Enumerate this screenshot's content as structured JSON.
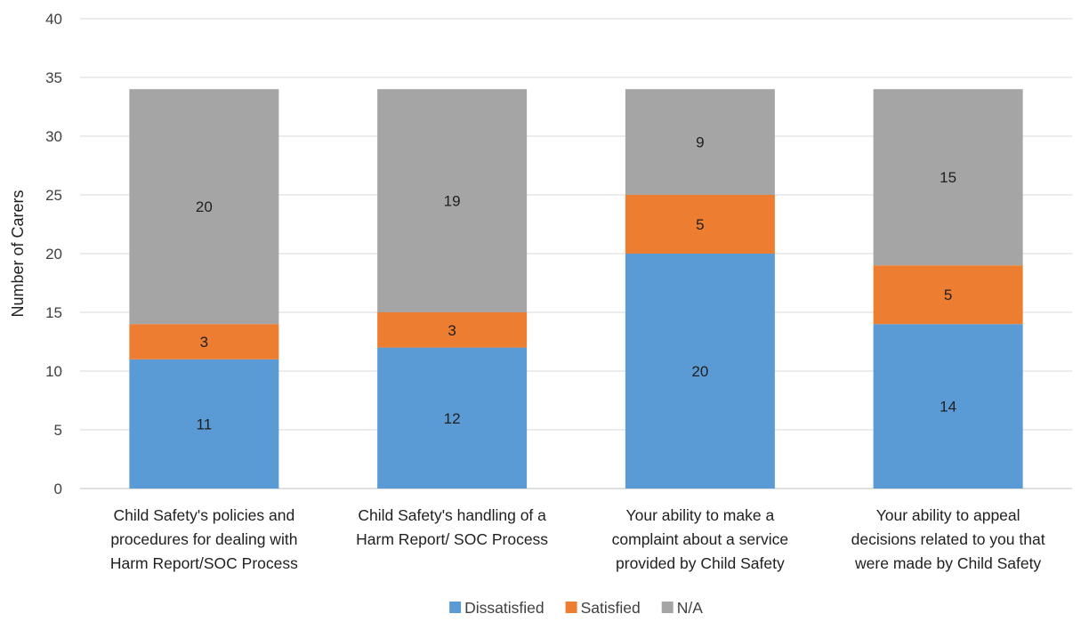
{
  "chart_data": {
    "type": "bar",
    "stacked": true,
    "title": "",
    "xlabel": "",
    "ylabel": "Number of Carers",
    "ylim": [
      0,
      40
    ],
    "yticks": [
      0,
      5,
      10,
      15,
      20,
      25,
      30,
      35,
      40
    ],
    "grid": "horizontal",
    "legend_position": "bottom",
    "categories": [
      [
        "Child Safety's policies and",
        "procedures for dealing with",
        "Harm Report/SOC Process"
      ],
      [
        "Child Safety's handling of a",
        "Harm Report/ SOC Process"
      ],
      [
        "Your ability to make a",
        "complaint about a service",
        "provided by Child Safety"
      ],
      [
        "Your ability to appeal",
        "decisions related to you that",
        "were made by Child Safety"
      ]
    ],
    "series": [
      {
        "name": "Dissatisfied",
        "color": "#5B9BD5",
        "values": [
          11,
          12,
          20,
          14
        ]
      },
      {
        "name": "Satisfied",
        "color": "#ED7D31",
        "values": [
          3,
          3,
          5,
          5
        ]
      },
      {
        "name": "N/A",
        "color": "#A5A5A5",
        "values": [
          20,
          19,
          9,
          15
        ]
      }
    ]
  }
}
